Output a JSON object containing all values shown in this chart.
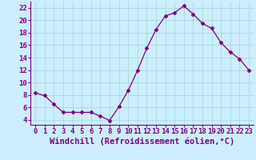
{
  "x": [
    0,
    1,
    2,
    3,
    4,
    5,
    6,
    7,
    8,
    9,
    10,
    11,
    12,
    13,
    14,
    15,
    16,
    17,
    18,
    19,
    20,
    21,
    22,
    23
  ],
  "y": [
    8.3,
    7.9,
    6.5,
    5.2,
    5.2,
    5.2,
    5.2,
    4.6,
    3.9,
    6.1,
    8.7,
    11.9,
    15.5,
    18.5,
    20.7,
    21.2,
    22.3,
    21.0,
    19.5,
    18.7,
    16.4,
    14.9,
    13.8,
    12.0
  ],
  "xlabel": "Windchill (Refroidissement éolien,°C)",
  "xlim": [
    -0.5,
    23.5
  ],
  "ylim": [
    3.2,
    23.0
  ],
  "yticks": [
    4,
    6,
    8,
    10,
    12,
    14,
    16,
    18,
    20,
    22
  ],
  "xticks": [
    0,
    1,
    2,
    3,
    4,
    5,
    6,
    7,
    8,
    9,
    10,
    11,
    12,
    13,
    14,
    15,
    16,
    17,
    18,
    19,
    20,
    21,
    22,
    23
  ],
  "line_color": "#800080",
  "marker": "D",
  "marker_size": 2.5,
  "bg_color": "#cceeff",
  "grid_color": "#aadddd",
  "xlabel_fontsize": 7.5,
  "tick_fontsize": 6.5
}
